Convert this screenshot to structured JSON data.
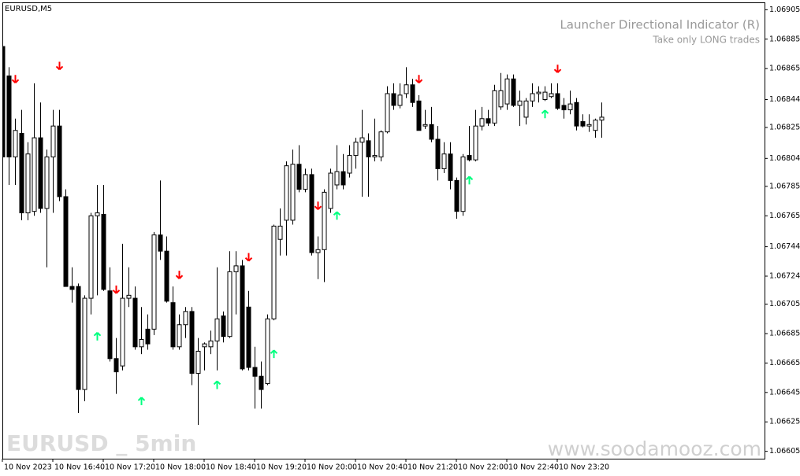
{
  "chart_data": {
    "type": "candlestick",
    "symbol": "EURUSD,M5",
    "title": "Launcher Directional Indicator (R)",
    "subtitle": "Take only LONG trades",
    "watermark_left": "EURUSD _ 5min",
    "watermark_right": "www.soodamooz.com",
    "bull_color": "#ffffff",
    "bear_color": "#000000",
    "sell_color": "#ff0000",
    "buy_color": "#00ff7f",
    "ylim": [
      1.066,
      1.0691
    ],
    "yticks": [
      1.06905,
      1.06885,
      1.06865,
      1.06844,
      1.06825,
      1.06804,
      1.06785,
      1.06765,
      1.06744,
      1.06724,
      1.06705,
      1.06685,
      1.06665,
      1.06645,
      1.06625,
      1.06605
    ],
    "categories": [
      "10 Nov 2023",
      null,
      null,
      null,
      null,
      null,
      null,
      null,
      "10 Nov 16:40",
      null,
      null,
      null,
      null,
      null,
      null,
      null,
      "10 Nov 17:20",
      null,
      null,
      null,
      null,
      null,
      null,
      null,
      "10 Nov 18:00",
      null,
      null,
      null,
      null,
      null,
      null,
      null,
      "10 Nov 18:40",
      null,
      null,
      null,
      null,
      null,
      null,
      null,
      "10 Nov 19:20",
      null,
      null,
      null,
      null,
      null,
      null,
      null,
      "10 Nov 20:00",
      null,
      null,
      null,
      null,
      null,
      null,
      null,
      "10 Nov 20:40",
      null,
      null,
      null,
      null,
      null,
      null,
      null,
      "10 Nov 21:20",
      null,
      null,
      null,
      null,
      null,
      null,
      null,
      "10 Nov 22:00",
      null,
      null,
      null,
      null,
      null,
      null,
      null,
      "10 Nov 22:40",
      null,
      null,
      null,
      null,
      null,
      null,
      null,
      "10 Nov 23:20",
      null,
      null,
      null,
      null,
      null,
      null,
      null
    ],
    "ohlc": [
      [
        1.0688,
        1.06888,
        1.06802,
        1.06805
      ],
      [
        1.0686,
        1.06866,
        1.06786,
        1.06805
      ],
      [
        1.06805,
        1.06831,
        1.06786,
        1.06823
      ],
      [
        1.06821,
        1.06837,
        1.06762,
        1.06767
      ],
      [
        1.06767,
        1.06815,
        1.06762,
        1.06807
      ],
      [
        1.06768,
        1.06855,
        1.06765,
        1.06818
      ],
      [
        1.06818,
        1.06842,
        1.06767,
        1.0677
      ],
      [
        1.0677,
        1.0681,
        1.0673,
        1.06805
      ],
      [
        1.06805,
        1.06837,
        1.06767,
        1.06826
      ],
      [
        1.06826,
        1.06837,
        1.06775,
        1.06778
      ],
      [
        1.06778,
        1.06783,
        1.06717,
        1.06717
      ],
      [
        1.06717,
        1.0673,
        1.06706,
        1.06715
      ],
      [
        1.06717,
        1.06719,
        1.06631,
        1.06647
      ],
      [
        1.06647,
        1.06711,
        1.06639,
        1.06709
      ],
      [
        1.06709,
        1.06767,
        1.06698,
        1.06765
      ],
      [
        1.06765,
        1.06786,
        1.06711,
        1.06767
      ],
      [
        1.06766,
        1.06786,
        1.06714,
        1.06715
      ],
      [
        1.06714,
        1.0673,
        1.06666,
        1.06668
      ],
      [
        1.06668,
        1.06682,
        1.06644,
        1.06659
      ],
      [
        1.06663,
        1.06746,
        1.0666,
        1.06709
      ],
      [
        1.06709,
        1.0673,
        1.06703,
        1.06711
      ],
      [
        1.06709,
        1.06717,
        1.06674,
        1.06676
      ],
      [
        1.06676,
        1.06703,
        1.06671,
        1.06681
      ],
      [
        1.06688,
        1.06698,
        1.06674,
        1.06678
      ],
      [
        1.06688,
        1.06754,
        1.06684,
        1.06752
      ],
      [
        1.06752,
        1.06789,
        1.06735,
        1.06741
      ],
      [
        1.06741,
        1.06751,
        1.06706,
        1.06707
      ],
      [
        1.06706,
        1.06717,
        1.06674,
        1.06676
      ],
      [
        1.06676,
        1.06698,
        1.06674,
        1.06691
      ],
      [
        1.06691,
        1.06703,
        1.06682,
        1.067
      ],
      [
        1.067,
        1.06703,
        1.0665,
        1.06658
      ],
      [
        1.06658,
        1.06682,
        1.06623,
        1.06673
      ],
      [
        1.06676,
        1.06679,
        1.0666,
        1.06678
      ],
      [
        1.06676,
        1.06687,
        1.06671,
        1.0668
      ],
      [
        1.0668,
        1.0673,
        1.0666,
        1.06695
      ],
      [
        1.06697,
        1.067,
        1.06679,
        1.06683
      ],
      [
        1.06683,
        1.06741,
        1.06682,
        1.06727
      ],
      [
        1.06727,
        1.06741,
        1.06698,
        1.06731
      ],
      [
        1.06731,
        1.06735,
        1.0666,
        1.06661
      ],
      [
        1.06703,
        1.06714,
        1.0666,
        1.06662
      ],
      [
        1.06662,
        1.06676,
        1.06634,
        1.06656
      ],
      [
        1.06656,
        1.06666,
        1.06634,
        1.06647
      ],
      [
        1.06651,
        1.06698,
        1.0665,
        1.06695
      ],
      [
        1.06695,
        1.06759,
        1.06694,
        1.06758
      ],
      [
        1.06749,
        1.0677,
        1.06738,
        1.06758
      ],
      [
        1.06762,
        1.06802,
        1.06738,
        1.06799
      ],
      [
        1.06762,
        1.0681,
        1.06759,
        1.068
      ],
      [
        1.068,
        1.06813,
        1.06781,
        1.06783
      ],
      [
        1.06783,
        1.06797,
        1.06781,
        1.06793
      ],
      [
        1.06793,
        1.06797,
        1.06738,
        1.0674
      ],
      [
        1.0674,
        1.06751,
        1.06722,
        1.06742
      ],
      [
        1.06742,
        1.06783,
        1.0672,
        1.06781
      ],
      [
        1.0677,
        1.06797,
        1.06767,
        1.06794
      ],
      [
        1.06786,
        1.06813,
        1.06783,
        1.06795
      ],
      [
        1.06795,
        1.06807,
        1.06783,
        1.06786
      ],
      [
        1.06794,
        1.06813,
        1.06791,
        1.06806
      ],
      [
        1.06806,
        1.06818,
        1.06797,
        1.06815
      ],
      [
        1.06815,
        1.06837,
        1.06778,
        1.06818
      ],
      [
        1.06816,
        1.06821,
        1.06778,
        1.06805
      ],
      [
        1.06805,
        1.06831,
        1.06802,
        1.06806
      ],
      [
        1.06805,
        1.06823,
        1.06802,
        1.06822
      ],
      [
        1.06822,
        1.06853,
        1.06821,
        1.06848
      ],
      [
        1.06848,
        1.06855,
        1.06837,
        1.0684
      ],
      [
        1.0684,
        1.06855,
        1.06838,
        1.06847
      ],
      [
        1.06848,
        1.06866,
        1.06845,
        1.06854
      ],
      [
        1.06854,
        1.06858,
        1.06839,
        1.06842
      ],
      [
        1.06843,
        1.06847,
        1.06823,
        1.06823
      ],
      [
        1.06826,
        1.06837,
        1.06824,
        1.06827
      ],
      [
        1.06827,
        1.06839,
        1.06815,
        1.06817
      ],
      [
        1.06817,
        1.06826,
        1.06789,
        1.06797
      ],
      [
        1.06797,
        1.06815,
        1.06794,
        1.06807
      ],
      [
        1.06807,
        1.06815,
        1.06783,
        1.06789
      ],
      [
        1.06789,
        1.06791,
        1.06763,
        1.06768
      ],
      [
        1.06768,
        1.06807,
        1.06765,
        1.06805
      ],
      [
        1.06806,
        1.06826,
        1.06802,
        1.06803
      ],
      [
        1.06803,
        1.06837,
        1.06802,
        1.06826
      ],
      [
        1.06826,
        1.06839,
        1.06823,
        1.06831
      ],
      [
        1.06831,
        1.06837,
        1.06826,
        1.06828
      ],
      [
        1.06828,
        1.06854,
        1.06826,
        1.0685
      ],
      [
        1.06839,
        1.06862,
        1.06837,
        1.0685
      ],
      [
        1.06841,
        1.06861,
        1.06837,
        1.06858
      ],
      [
        1.06858,
        1.06861,
        1.06839,
        1.0684
      ],
      [
        1.0684,
        1.0685,
        1.06826,
        1.06843
      ],
      [
        1.06832,
        1.06845,
        1.06827,
        1.06843
      ],
      [
        1.06843,
        1.06855,
        1.06839,
        1.06848
      ],
      [
        1.06848,
        1.06853,
        1.06842,
        1.06849
      ],
      [
        1.06844,
        1.06853,
        1.06843,
        1.06849
      ],
      [
        1.06846,
        1.06855,
        1.06845,
        1.06848
      ],
      [
        1.06848,
        1.06855,
        1.06837,
        1.06838
      ],
      [
        1.0684,
        1.06845,
        1.06831,
        1.06837
      ],
      [
        1.06837,
        1.0685,
        1.06834,
        1.06841
      ],
      [
        1.06842,
        1.06845,
        1.06823,
        1.06826
      ],
      [
        1.06829,
        1.06834,
        1.06825,
        1.06826
      ],
      [
        1.06826,
        1.06834,
        1.06822,
        1.06827
      ],
      [
        1.06823,
        1.06831,
        1.06818,
        1.0683
      ],
      [
        1.0683,
        1.06842,
        1.06818,
        1.06832
      ]
    ],
    "sell_arrows": [
      {
        "index": 2,
        "price": 1.06858
      },
      {
        "index": 9,
        "price": 1.06867
      },
      {
        "index": 18,
        "price": 1.06715
      },
      {
        "index": 28,
        "price": 1.06725
      },
      {
        "index": 39,
        "price": 1.06737
      },
      {
        "index": 50,
        "price": 1.06772
      },
      {
        "index": 66,
        "price": 1.06858
      },
      {
        "index": 88,
        "price": 1.06865
      }
    ],
    "buy_arrows": [
      {
        "index": 15,
        "price": 1.06683
      },
      {
        "index": 22,
        "price": 1.06639
      },
      {
        "index": 34,
        "price": 1.0665
      },
      {
        "index": 43,
        "price": 1.06671
      },
      {
        "index": 53,
        "price": 1.06765
      },
      {
        "index": 74,
        "price": 1.06789
      },
      {
        "index": 86,
        "price": 1.06834
      }
    ]
  }
}
